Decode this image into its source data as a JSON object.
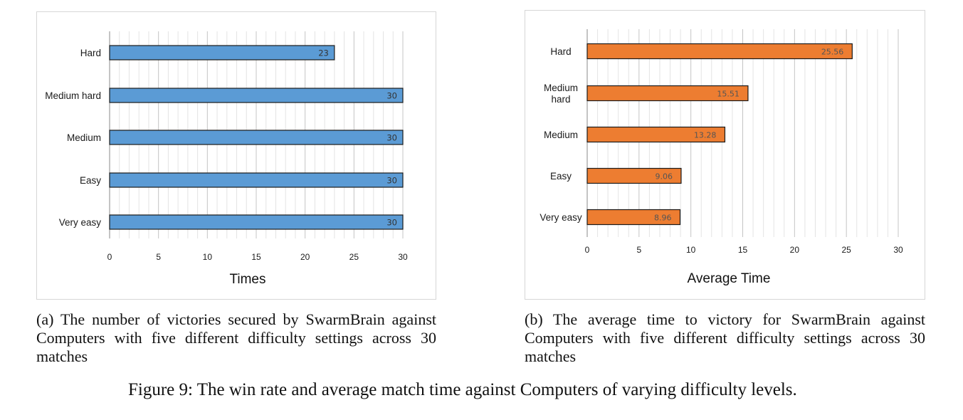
{
  "chart_data": [
    {
      "type": "bar",
      "orientation": "horizontal",
      "categories": [
        "Hard",
        "Medium hard",
        "Medium",
        "Easy",
        "Very easy"
      ],
      "values": [
        23,
        30,
        30,
        30,
        30
      ],
      "value_labels": [
        "23",
        "30",
        "30",
        "30",
        "30"
      ],
      "xlabel": "Times",
      "ylabel": "",
      "xlim": [
        0,
        30
      ],
      "xticks": [
        0,
        5,
        10,
        15,
        20,
        25,
        30
      ],
      "xtick_labels": [
        "0",
        "5",
        "10",
        "15",
        "20",
        "25",
        "30"
      ],
      "bar_color": "#5B9BD5",
      "grid": true,
      "caption": "(a) The number of victories secured by SwarmBrain against Computers with five different difficulty settings across 30 matches"
    },
    {
      "type": "bar",
      "orientation": "horizontal",
      "categories": [
        "Hard",
        "Medium hard",
        "Medium",
        "Easy",
        "Very easy"
      ],
      "category_lines": [
        [
          "Hard"
        ],
        [
          "Medium",
          "hard"
        ],
        [
          "Medium"
        ],
        [
          "Easy"
        ],
        [
          "Very easy"
        ]
      ],
      "values": [
        25.56,
        15.51,
        13.28,
        9.06,
        8.96
      ],
      "value_labels": [
        "25.56",
        "15.51",
        "13.28",
        "9.06",
        "8.96"
      ],
      "xlabel": "Average Time",
      "ylabel": "",
      "xlim": [
        0,
        30
      ],
      "xticks": [
        0,
        5,
        10,
        15,
        20,
        25,
        30
      ],
      "xtick_labels": [
        "0",
        "5",
        "10",
        "15",
        "20",
        "25",
        "30"
      ],
      "bar_color": "#ED7D31",
      "grid": true,
      "caption": "(b) The average time to victory for SwarmBrain against Computers with five different difficulty settings across 30 matches"
    }
  ],
  "figure_caption": "Figure 9: The win rate and average match time against Computers of varying difficulty levels."
}
